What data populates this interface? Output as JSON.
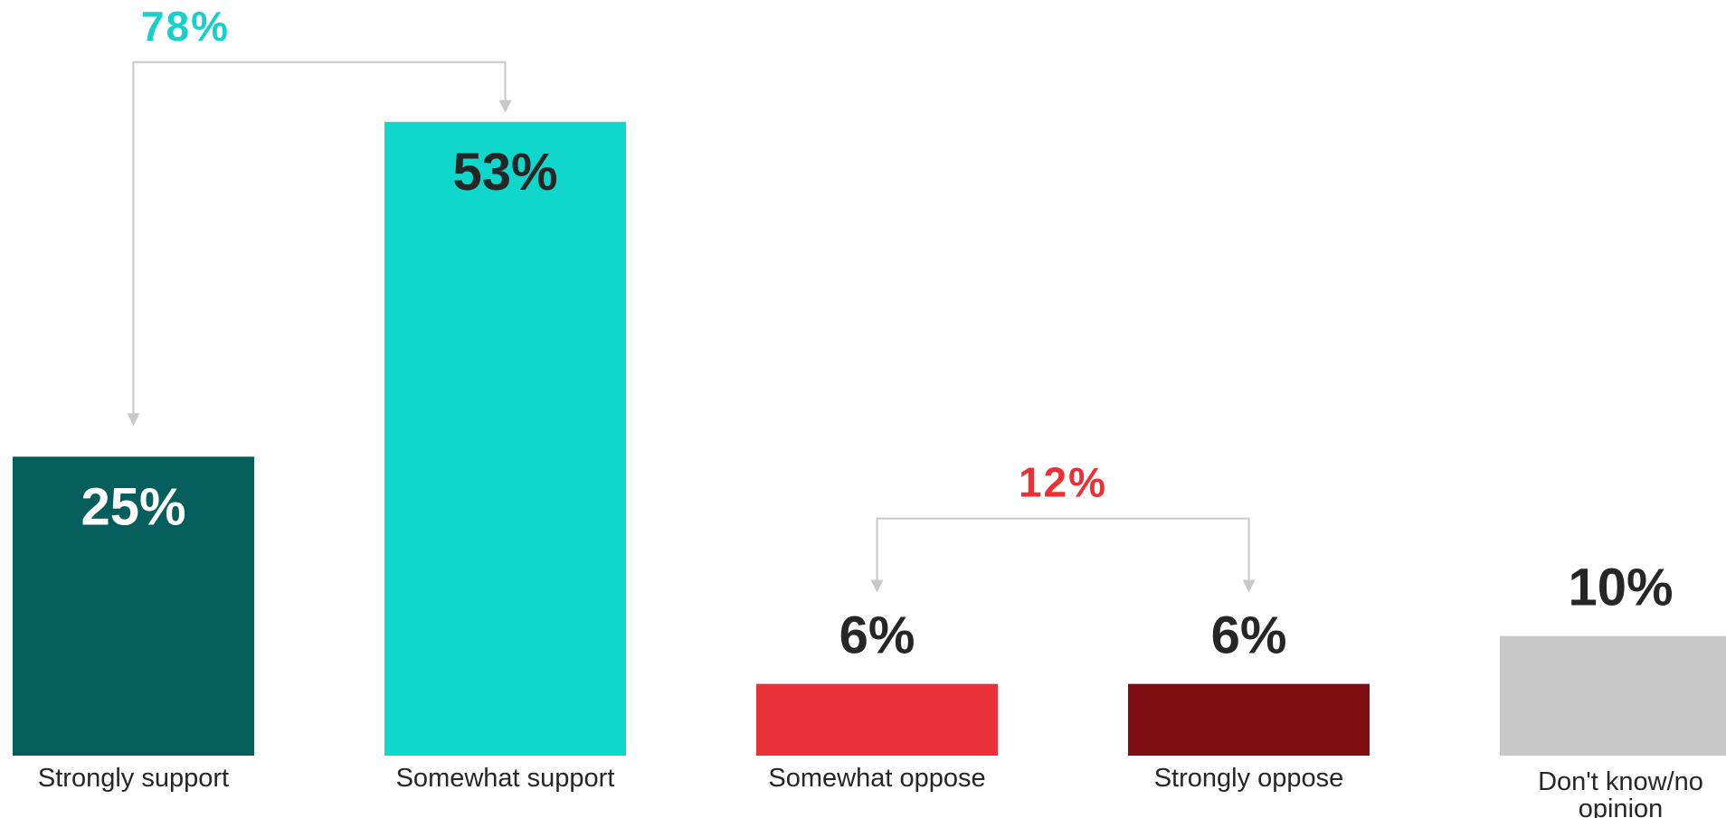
{
  "chart_data": {
    "type": "bar",
    "categories": [
      "Strongly support",
      "Somewhat support",
      "Somewhat oppose",
      "Strongly oppose",
      "Don't know/no opinion"
    ],
    "values": [
      25,
      53,
      6,
      6,
      10
    ],
    "value_labels": [
      "25%",
      "53%",
      "6%",
      "6%",
      "10%"
    ],
    "colors": [
      "#035e5c",
      "#0fd7cb",
      "#e83237",
      "#7f0e12",
      "#c8c8c8"
    ],
    "ylim": [
      0,
      60
    ],
    "grid": false,
    "nets": [
      {
        "label": "78%",
        "color": "#16d1c9",
        "bars": [
          0,
          1
        ]
      },
      {
        "label": "12%",
        "color": "#e83237",
        "bars": [
          2,
          3
        ]
      }
    ]
  }
}
